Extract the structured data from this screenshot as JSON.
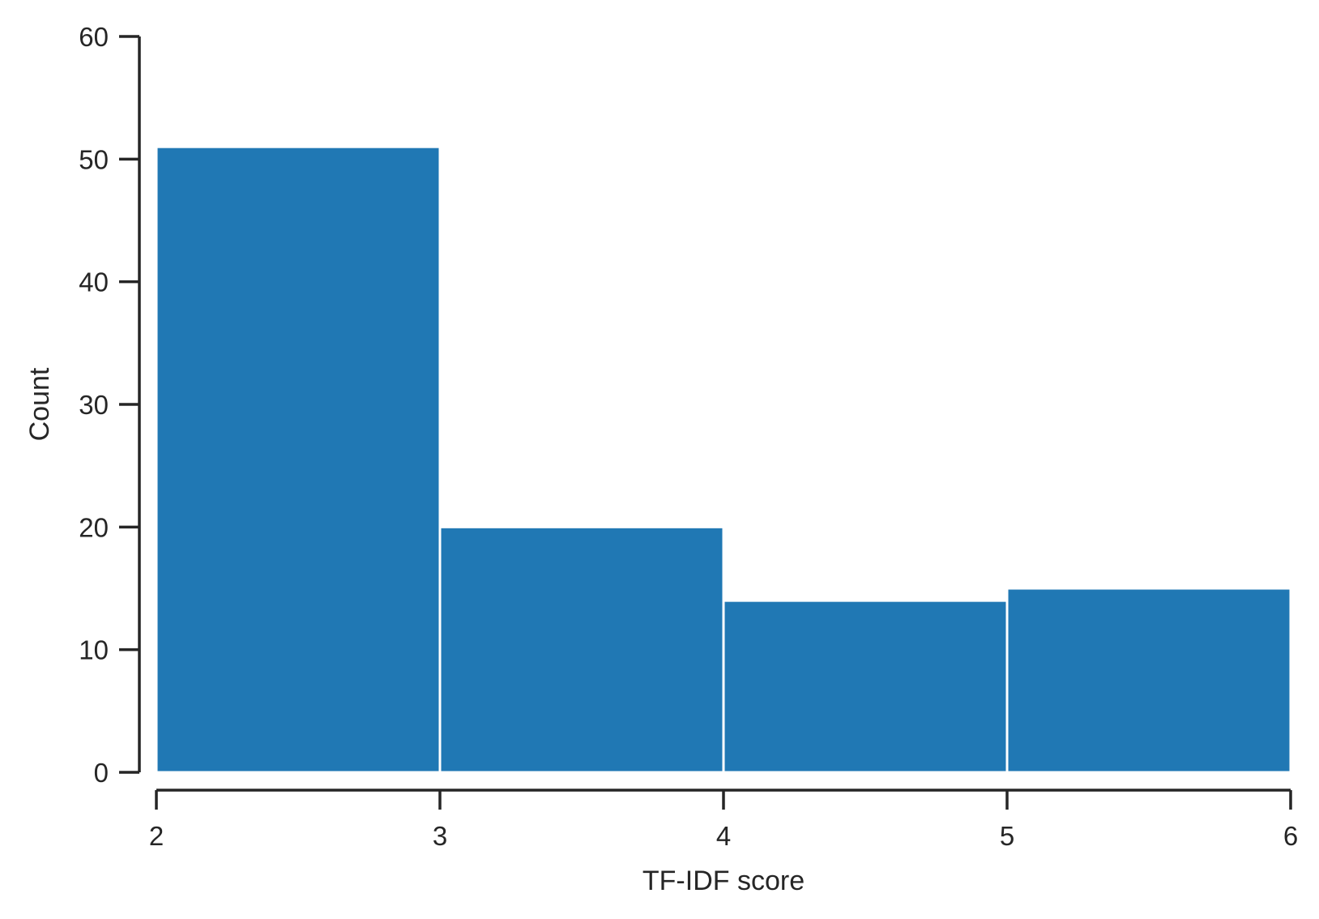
{
  "chart_data": {
    "type": "bar",
    "subtype": "histogram",
    "title": "",
    "xlabel": "TF-IDF score",
    "ylabel": "Count",
    "bins": [
      {
        "start": 2,
        "end": 3,
        "count": 51
      },
      {
        "start": 3,
        "end": 4,
        "count": 20
      },
      {
        "start": 4,
        "end": 5,
        "count": 14
      },
      {
        "start": 5,
        "end": 6,
        "count": 15
      }
    ],
    "xlim": [
      2,
      6
    ],
    "ylim": [
      0,
      60
    ],
    "xticks": [
      2,
      3,
      4,
      5,
      6
    ],
    "yticks": [
      0,
      10,
      20,
      30,
      40,
      50,
      60
    ],
    "xtick_labels": [
      "2",
      "3",
      "4",
      "5",
      "6"
    ],
    "ytick_labels": [
      "0",
      "10",
      "20",
      "30",
      "40",
      "50",
      "60"
    ],
    "grid": false,
    "legend": "none",
    "colors": {
      "bar_fill": "#2078b4",
      "bar_edge": "#ffffff",
      "axis": "#262626",
      "text": "#262626"
    }
  }
}
